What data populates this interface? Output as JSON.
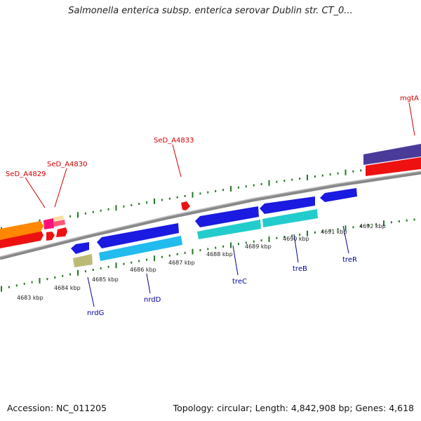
{
  "title": "Salmonella enterica subsp. enterica serovar Dublin str. CT_0...",
  "footer": {
    "accession": "Accession: NC_011205",
    "topology": "Topology: circular; Length: 4,842,908 bp; Genes: 4,618"
  },
  "colors": {
    "backbone": "#888888",
    "tick_green": "#227722",
    "label_red": "#cc0000",
    "label_blue": "#000099",
    "blue_gene": "#1a1ae0",
    "cyan_gene": "#22cccc",
    "red_gene": "#ee1111",
    "orange_gene": "#ff8800",
    "purple_gene": "#4a3a99",
    "olive_gene": "#bbbb77"
  },
  "kbp_labels": [
    "4683 kbp",
    "4684 kbp",
    "4685 kbp",
    "4686 kbp",
    "4687 kbp",
    "4688 kbp",
    "4689 kbp",
    "4690 kbp",
    "4691 kbp",
    "4692 kbp"
  ],
  "gene_labels_top": [
    "SeD_A4829",
    "SeD_A4830",
    "SeD_A4833",
    "mgtA"
  ],
  "gene_labels_bottom": [
    "nrdG",
    "nrdD",
    "treC",
    "treB",
    "treR"
  ]
}
